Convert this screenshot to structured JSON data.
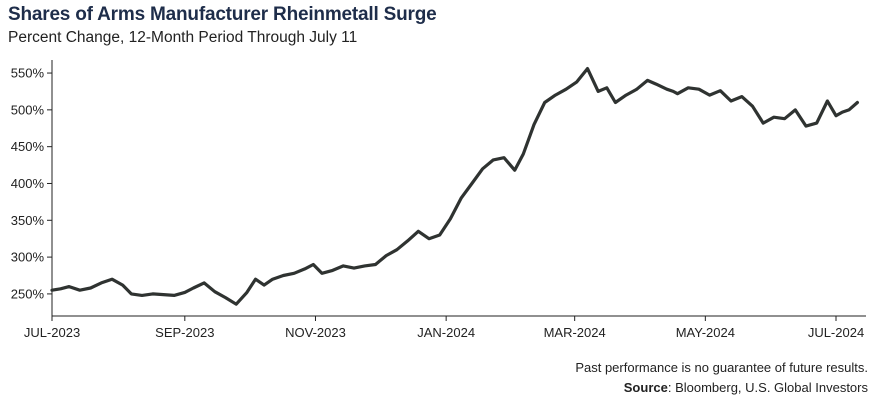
{
  "header": {
    "title": "Shares of Arms Manufacturer Rheinmetall Surge",
    "subtitle": "Percent Change, 12-Month Period Through July 11"
  },
  "footer": {
    "disclaimer": "Past performance is no guarantee of future results.",
    "source_label": "Source",
    "source_text": ": Bloomberg, U.S. Global Investors"
  },
  "colors": {
    "line": "#2f3331",
    "axis": "#222222"
  },
  "chart_data": {
    "type": "line",
    "title": "Shares of Arms Manufacturer Rheinmetall Surge",
    "subtitle": "Percent Change, 12-Month Period Through July 11",
    "xlabel": "",
    "ylabel": "",
    "grid": false,
    "y_ticks": [
      250,
      300,
      350,
      400,
      450,
      500,
      550
    ],
    "y_tick_labels": [
      "250%",
      "300%",
      "350%",
      "400%",
      "450%",
      "500%",
      "550%"
    ],
    "ylim": [
      220,
      565
    ],
    "x_ticks": [
      "2023-07-01",
      "2023-09-01",
      "2023-11-01",
      "2024-01-01",
      "2024-03-01",
      "2024-05-01",
      "2024-07-01"
    ],
    "x_tick_labels": [
      "JUL-2023",
      "SEP-2023",
      "NOV-2023",
      "JAN-2024",
      "MAR-2024",
      "MAY-2024",
      "JUL-2024"
    ],
    "xlim": [
      "2023-07-01",
      "2024-07-15"
    ],
    "x": [
      "2023-07-01",
      "2023-07-05",
      "2023-07-09",
      "2023-07-14",
      "2023-07-19",
      "2023-07-24",
      "2023-07-29",
      "2023-08-03",
      "2023-08-07",
      "2023-08-12",
      "2023-08-17",
      "2023-08-22",
      "2023-08-27",
      "2023-09-01",
      "2023-09-05",
      "2023-09-10",
      "2023-09-15",
      "2023-09-20",
      "2023-09-25",
      "2023-09-30",
      "2023-10-04",
      "2023-10-08",
      "2023-10-12",
      "2023-10-17",
      "2023-10-22",
      "2023-10-27",
      "2023-10-31",
      "2023-11-04",
      "2023-11-09",
      "2023-11-14",
      "2023-11-19",
      "2023-11-24",
      "2023-11-29",
      "2023-12-04",
      "2023-12-09",
      "2023-12-14",
      "2023-12-19",
      "2023-12-24",
      "2023-12-29",
      "2024-01-03",
      "2024-01-08",
      "2024-01-13",
      "2024-01-18",
      "2024-01-23",
      "2024-01-28",
      "2024-02-02",
      "2024-02-06",
      "2024-02-11",
      "2024-02-16",
      "2024-02-21",
      "2024-02-26",
      "2024-03-02",
      "2024-03-07",
      "2024-03-12",
      "2024-03-16",
      "2024-03-20",
      "2024-03-25",
      "2024-03-30",
      "2024-04-04",
      "2024-04-08",
      "2024-04-13",
      "2024-04-16",
      "2024-04-18",
      "2024-04-23",
      "2024-04-28",
      "2024-05-03",
      "2024-05-08",
      "2024-05-13",
      "2024-05-18",
      "2024-05-23",
      "2024-05-28",
      "2024-06-02",
      "2024-06-07",
      "2024-06-12",
      "2024-06-17",
      "2024-06-22",
      "2024-06-27",
      "2024-07-01",
      "2024-07-04",
      "2024-07-07",
      "2024-07-11"
    ],
    "series": [
      {
        "values": [
          255,
          257,
          260,
          255,
          258,
          265,
          270,
          262,
          250,
          248,
          250,
          249,
          248,
          252,
          258,
          265,
          253,
          245,
          236,
          252,
          270,
          262,
          270,
          275,
          278,
          284,
          290,
          278,
          282,
          288,
          285,
          288,
          290,
          302,
          310,
          322,
          335,
          325,
          330,
          352,
          380,
          400,
          420,
          432,
          435,
          418,
          440,
          480,
          510,
          520,
          528,
          538,
          556,
          525,
          530,
          510,
          520,
          528,
          540,
          535,
          528,
          525,
          522,
          530,
          528,
          520,
          526,
          512,
          518,
          505,
          482,
          490,
          488,
          500,
          478,
          482,
          512,
          492,
          497,
          500,
          510
        ]
      }
    ]
  }
}
